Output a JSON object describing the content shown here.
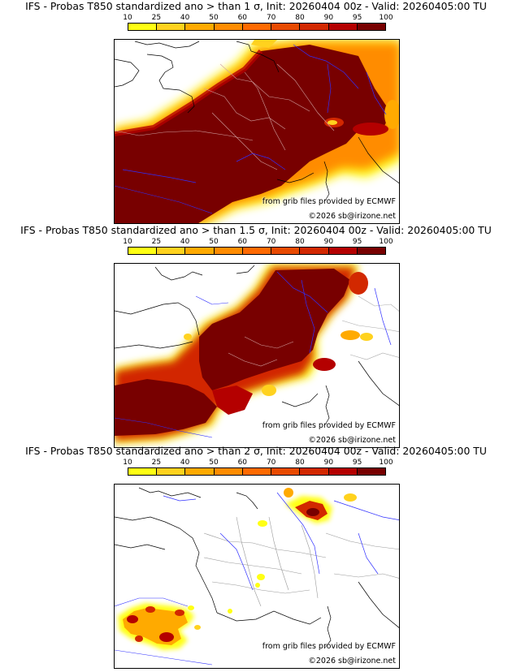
{
  "legend": {
    "ticks": [
      "10",
      "25",
      "40",
      "50",
      "60",
      "70",
      "80",
      "90",
      "95",
      "100"
    ],
    "colors": [
      "#ffff14",
      "#ffd21e",
      "#ffaa00",
      "#ff8c00",
      "#ff6a00",
      "#e84a00",
      "#d22800",
      "#b40000",
      "#780000"
    ]
  },
  "panels": [
    {
      "title": "IFS - Probas T850  standardized ano > than 1 σ, Init: 20260404 00z - Valid: 20260405:00 TU",
      "credit_source": "from grib files provided by ECMWF",
      "credit_copyright": "©2026 sb@irizone.net"
    },
    {
      "title": "IFS - Probas T850  standardized ano > than 1.5 σ, Init: 20260404 00z - Valid: 20260405:00 TU",
      "credit_source": "from grib files provided by ECMWF",
      "credit_copyright": "©2026 sb@irizone.net"
    },
    {
      "title": "IFS - Probas T850  standardized ano > than 2 σ, Init: 20260404 00z - Valid: 20260405:00 TU",
      "credit_source": "from grib files provided by ECMWF",
      "credit_copyright": "©2026 sb@irizone.net"
    }
  ]
}
